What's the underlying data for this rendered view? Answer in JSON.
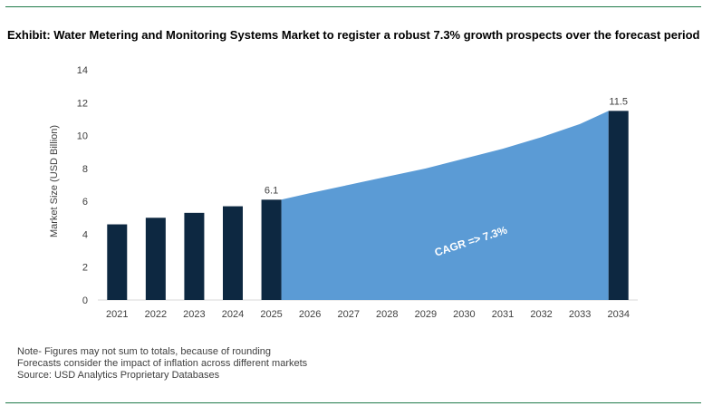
{
  "header": {
    "title": "Exhibit: Water Metering and Monitoring Systems Market to register a robust 7.3% growth prospects over the forecast period"
  },
  "chart_data": {
    "type": "bar",
    "ylabel": "Market Size (USD Billion)",
    "ylim": [
      0,
      14
    ],
    "yticks": [
      0,
      2,
      4,
      6,
      8,
      10,
      12,
      14
    ],
    "categories": [
      "2021",
      "2022",
      "2023",
      "2024",
      "2025",
      "2026",
      "2027",
      "2028",
      "2029",
      "2030",
      "2031",
      "2032",
      "2033",
      "2034"
    ],
    "bars": [
      {
        "x": "2021",
        "value": 4.6
      },
      {
        "x": "2022",
        "value": 5.0
      },
      {
        "x": "2023",
        "value": 5.3
      },
      {
        "x": "2024",
        "value": 5.7
      },
      {
        "x": "2025",
        "value": 6.1,
        "label": "6.1"
      },
      {
        "x": "2034",
        "value": 11.5,
        "label": "11.5"
      }
    ],
    "forecast_area": {
      "x": [
        "2025",
        "2026",
        "2027",
        "2028",
        "2029",
        "2030",
        "2031",
        "2032",
        "2033",
        "2034"
      ],
      "values": [
        6.1,
        6.5,
        7.0,
        7.5,
        8.0,
        8.6,
        9.2,
        9.9,
        10.7,
        11.5
      ]
    },
    "annotation": "CAGR => 7.3%",
    "colors": {
      "bar": "#0d2841",
      "area": "#5b9bd5"
    }
  },
  "notes": [
    "Note- Figures may not sum to totals, because of rounding",
    "Forecasts consider the impact of inflation across different markets",
    "Source: USD Analytics Proprietary Databases"
  ]
}
